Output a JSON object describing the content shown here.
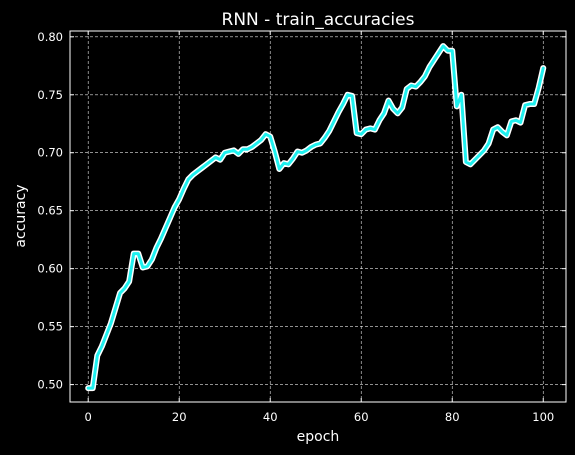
{
  "chart_data": {
    "type": "line",
    "title": "RNN - train_accuracies",
    "xlabel": "epoch",
    "ylabel": "accuracy",
    "xlim": [
      -4,
      105
    ],
    "ylim": [
      0.485,
      0.805
    ],
    "xticks": [
      0,
      20,
      40,
      60,
      80,
      100
    ],
    "yticks": [
      0.5,
      0.55,
      0.6,
      0.65,
      0.7,
      0.75,
      0.8
    ],
    "ytick_labels": [
      "0.50",
      "0.55",
      "0.60",
      "0.65",
      "0.70",
      "0.75",
      "0.80"
    ],
    "grid": true,
    "background": "#000000",
    "line_color": "#1ff0ef",
    "outline_color": "#ffffff",
    "series": [
      {
        "x": [
          0,
          1,
          2,
          3,
          4,
          5,
          6,
          7,
          8,
          9,
          10,
          11,
          12,
          13,
          14,
          15,
          16,
          17,
          18,
          19,
          20,
          21,
          22,
          23,
          24,
          25,
          26,
          27,
          28,
          29,
          30,
          31,
          32,
          33,
          34,
          35,
          36,
          37,
          38,
          39,
          40,
          41,
          42,
          43,
          44,
          45,
          46,
          47,
          48,
          49,
          50,
          51,
          52,
          53,
          54,
          55,
          56,
          57,
          58,
          59,
          60,
          61,
          62,
          63,
          64,
          65,
          66,
          67,
          68,
          69,
          70,
          71,
          72,
          73,
          74,
          75,
          76,
          77,
          78,
          79,
          80,
          81,
          82,
          83,
          84,
          85,
          86,
          87,
          88,
          89,
          90,
          91,
          92,
          93,
          94,
          95,
          96,
          97,
          98,
          99,
          100
        ],
        "y": [
          0.497,
          0.497,
          0.525,
          0.533,
          0.543,
          0.553,
          0.566,
          0.579,
          0.583,
          0.589,
          0.613,
          0.613,
          0.601,
          0.602,
          0.608,
          0.618,
          0.626,
          0.635,
          0.644,
          0.653,
          0.66,
          0.669,
          0.677,
          0.681,
          0.684,
          0.687,
          0.69,
          0.693,
          0.696,
          0.694,
          0.7,
          0.701,
          0.702,
          0.699,
          0.703,
          0.703,
          0.705,
          0.708,
          0.711,
          0.716,
          0.714,
          0.701,
          0.686,
          0.691,
          0.69,
          0.695,
          0.701,
          0.7,
          0.702,
          0.705,
          0.707,
          0.708,
          0.713,
          0.719,
          0.727,
          0.735,
          0.742,
          0.75,
          0.749,
          0.717,
          0.716,
          0.72,
          0.721,
          0.72,
          0.728,
          0.734,
          0.745,
          0.738,
          0.734,
          0.739,
          0.755,
          0.758,
          0.757,
          0.761,
          0.766,
          0.774,
          0.78,
          0.786,
          0.792,
          0.788,
          0.788,
          0.74,
          0.75,
          0.692,
          0.69,
          0.694,
          0.698,
          0.702,
          0.708,
          0.72,
          0.722,
          0.718,
          0.715,
          0.727,
          0.728,
          0.726,
          0.741,
          0.742,
          0.742,
          0.756,
          0.773
        ]
      }
    ]
  }
}
